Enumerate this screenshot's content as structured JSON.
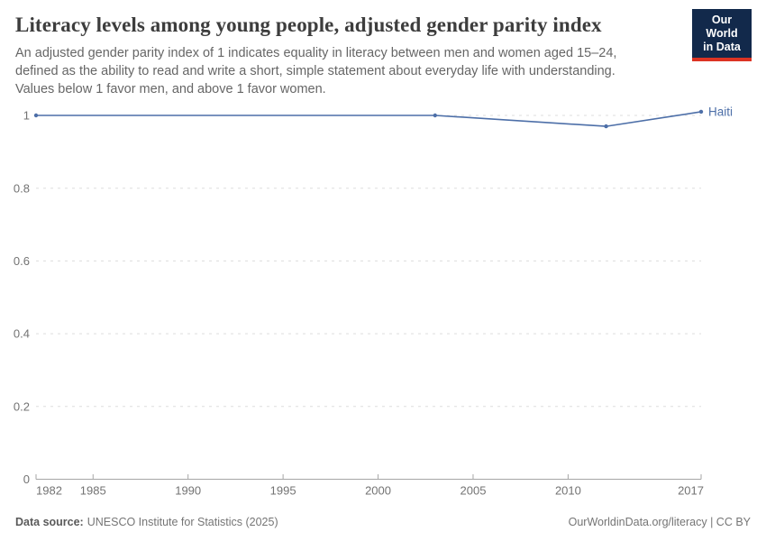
{
  "header": {
    "title": "Literacy levels among young people, adjusted gender parity index",
    "subtitle": "An adjusted gender parity index of 1 indicates equality in literacy between men and women aged 15–24,\ndefined as the ability to read and write a short, simple statement about everyday life with understanding.\nValues below 1 favor men, and above 1 favor women."
  },
  "logo": {
    "line1": "Our World",
    "line2": "in Data",
    "bg_color": "#12294B",
    "bar_color": "#DC3323"
  },
  "chart_data": {
    "type": "line",
    "title": "Literacy levels among young people, adjusted gender parity index",
    "xlabel": "",
    "ylabel": "",
    "xlim": [
      1982,
      2017
    ],
    "ylim": [
      0,
      1
    ],
    "xticks": [
      1982,
      1985,
      1990,
      1995,
      2000,
      2005,
      2010,
      2017
    ],
    "yticks": [
      0,
      0.2,
      0.4,
      0.6,
      0.8,
      1
    ],
    "grid": "horizontal-dashed",
    "legend_position": "line-end-label",
    "axis_color": "#a6a6a6",
    "grid_color": "#dddddd",
    "tick_label_color": "#737373",
    "series": [
      {
        "name": "Haiti",
        "color": "#4d6fa8",
        "points": [
          {
            "year": 1982,
            "value": 1.0
          },
          {
            "year": 2003,
            "value": 1.0
          },
          {
            "year": 2012,
            "value": 0.97
          },
          {
            "year": 2017,
            "value": 1.01
          }
        ]
      }
    ]
  },
  "footer": {
    "source_label": "Data source:",
    "source_value": "UNESCO Institute for Statistics (2025)",
    "credit": "OurWorldinData.org/literacy | CC BY"
  }
}
